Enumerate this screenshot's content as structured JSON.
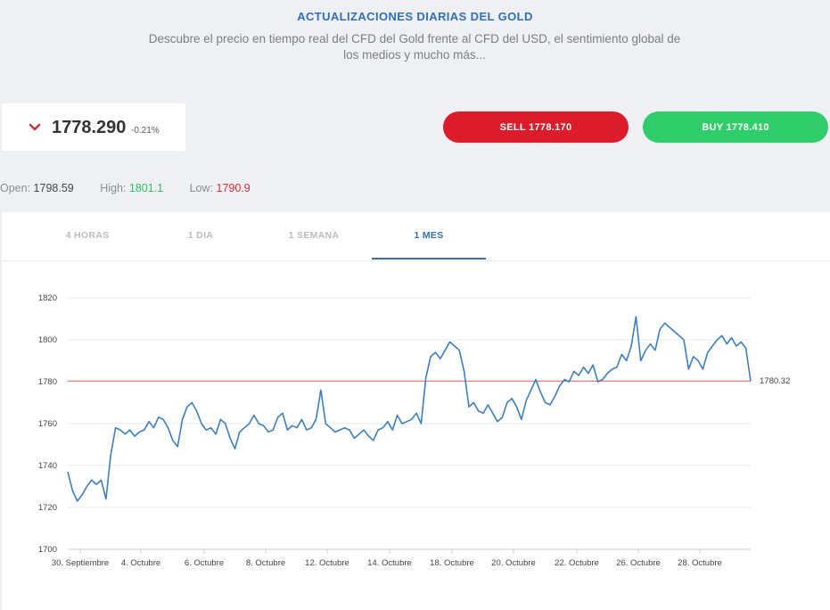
{
  "header": {
    "title": "ACTUALIZACIONES DIARIAS DEL GOLD",
    "subtitle": "Descubre el precio en tiempo real del CFD del Gold frente al CFD del USD, el sentimiento global de los medios y mucho más..."
  },
  "price": {
    "value": "1778.290",
    "change": "-0.21%",
    "direction_icon": "chevron-down-icon",
    "direction_color": "#dd2b38"
  },
  "actions": {
    "sell_label": "SELL 1778.170",
    "buy_label": "BUY 1778.410",
    "sell_color": "#dd1c2b",
    "buy_color": "#2fce6a"
  },
  "ohl": {
    "open_label": "Open:",
    "open_value": "1798.59",
    "high_label": "High:",
    "high_value": "1801.1",
    "low_label": "Low:",
    "low_value": "1790.9"
  },
  "tabs": [
    {
      "label": "4 HORAS",
      "active": false
    },
    {
      "label": "1 DIA",
      "active": false
    },
    {
      "label": "1 SEMANA",
      "active": false
    },
    {
      "label": "1 MES",
      "active": true
    }
  ],
  "chart_data": {
    "type": "line",
    "title": "",
    "xlabel": "",
    "ylabel": "",
    "ylim": [
      1700,
      1820
    ],
    "y_ticks": [
      1700,
      1720,
      1740,
      1760,
      1780,
      1800,
      1820
    ],
    "x_ticks": [
      "30. Septiembre",
      "4. Octubre",
      "6. Octubre",
      "8. Octubre",
      "12. Octubre",
      "14. Octubre",
      "18. Octubre",
      "20. Octubre",
      "22. Octubre",
      "26. Octubre",
      "28. Octubre"
    ],
    "grid": true,
    "line_color": "#3a7fc4",
    "current_price_line": {
      "value": 1780.32,
      "label": "1780.32",
      "color": "#e06666"
    },
    "series": [
      {
        "values": [
          1737,
          1728,
          1723,
          1726,
          1730,
          1733,
          1731,
          1733,
          1724,
          1745,
          1758,
          1757,
          1755,
          1757,
          1754,
          1756,
          1757,
          1761,
          1758,
          1763,
          1762,
          1758,
          1752,
          1749,
          1762,
          1768,
          1770,
          1766,
          1760,
          1757,
          1758,
          1755,
          1762,
          1760,
          1753,
          1748,
          1756,
          1758,
          1760,
          1764,
          1760,
          1759,
          1756,
          1757,
          1763,
          1765,
          1757,
          1759,
          1758,
          1762,
          1757,
          1758,
          1762,
          1776,
          1760,
          1758,
          1756,
          1757,
          1758,
          1757,
          1753,
          1755,
          1757,
          1754,
          1752,
          1757,
          1758,
          1761,
          1757,
          1764,
          1760,
          1761,
          1762,
          1765,
          1760,
          1782,
          1792,
          1794,
          1791,
          1795,
          1799,
          1797,
          1795,
          1785,
          1768,
          1770,
          1766,
          1765,
          1769,
          1765,
          1761,
          1763,
          1770,
          1772,
          1768,
          1762,
          1771,
          1776,
          1781,
          1775,
          1770,
          1769,
          1773,
          1778,
          1781,
          1780,
          1785,
          1783,
          1787,
          1784,
          1788,
          1780,
          1781,
          1784,
          1786,
          1787,
          1793,
          1790,
          1797,
          1811,
          1790,
          1795,
          1798,
          1795,
          1805,
          1808,
          1806,
          1804,
          1802,
          1800,
          1786,
          1792,
          1790,
          1786,
          1794,
          1797,
          1800,
          1802,
          1798,
          1801,
          1797,
          1799,
          1796,
          1780.32
        ]
      }
    ]
  }
}
